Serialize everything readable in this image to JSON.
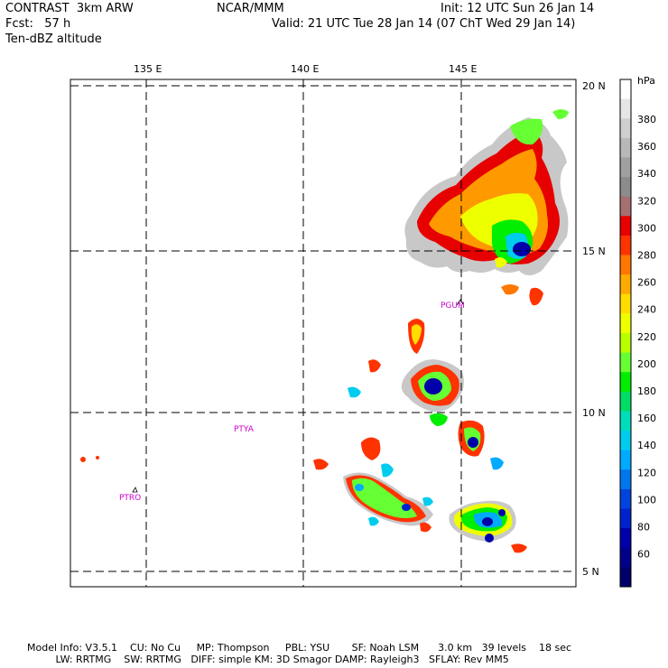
{
  "header": {
    "model": "CONTRAST  3km ARW",
    "forecast": "Fcst:   57 h",
    "field": "Ten-dBZ altitude",
    "center": "NCAR/MMM",
    "init": "Init: 12 UTC Sun 26 Jan 14",
    "valid": "Valid: 21 UTC Tue 28 Jan 14 (07 ChT Wed 29 Jan 14)"
  },
  "map": {
    "lon_labels": [
      "135 E",
      "140 E",
      "145 E"
    ],
    "lat_labels": [
      "20 N",
      "15 N",
      "10 N",
      "5 N"
    ],
    "stations": [
      "PGUM",
      "PTYA",
      "PTRO"
    ]
  },
  "colorbar": {
    "unit": "hPa",
    "labels": [
      "380",
      "360",
      "340",
      "320",
      "300",
      "280",
      "260",
      "240",
      "220",
      "200",
      "180",
      "160",
      "140",
      "120",
      "100",
      "80",
      "60"
    ],
    "colors": [
      "#ffffff",
      "#e6e6e6",
      "#cfcfcf",
      "#b8b8b8",
      "#a0a0a0",
      "#8c8c8c",
      "#a67070",
      "#e60000",
      "#ff3300",
      "#ff7700",
      "#ffaa00",
      "#ffdd00",
      "#eeff00",
      "#b8ff00",
      "#66ff33",
      "#00ee00",
      "#00dd66",
      "#00ddbb",
      "#00ccee",
      "#00aaff",
      "#0077ee",
      "#0044dd",
      "#0022cc",
      "#0000aa",
      "#000088",
      "#00006a"
    ]
  },
  "footer": {
    "line1": "Model Info: V3.5.1    CU: No Cu     MP: Thompson     PBL: YSU       SF: Noah LSM      3.0 km   39 levels    18 sec",
    "line2": "         LW: RRTMG    SW: RRTMG   DIFF: simple KM: 3D Smagor DAMP: Rayleigh3   SFLAY: Rev MM5"
  }
}
